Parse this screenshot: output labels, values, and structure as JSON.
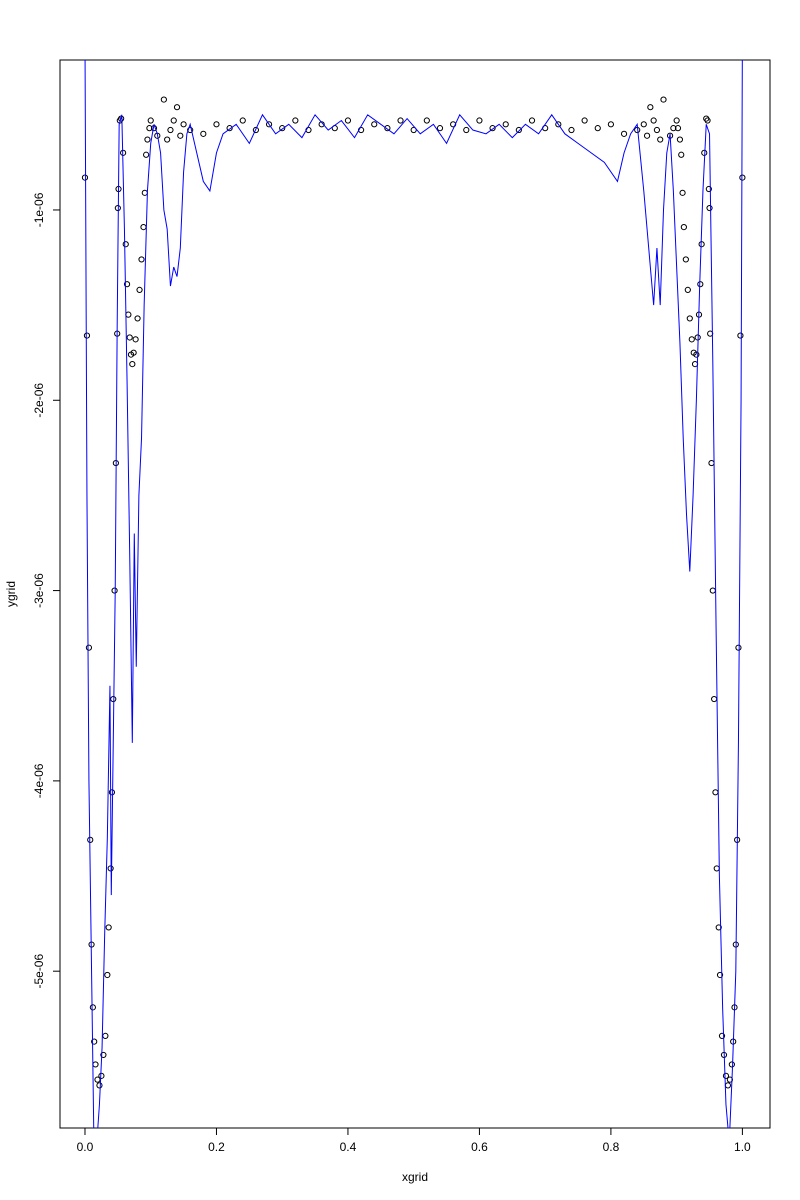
{
  "chart_data": {
    "type": "scatter",
    "x_label": "xgrid",
    "y_label": "ygrid",
    "xlim": [
      -0.038,
      1.042
    ],
    "ylim": [
      -5.824e-06,
      -2.12e-07
    ],
    "xticks": [
      {
        "value": 0,
        "label": "0.0"
      },
      0.2,
      0.4,
      0.6,
      0.8,
      {
        "value": 1,
        "label": "1.0"
      }
    ],
    "yticks": [
      {
        "value": -1e-06,
        "label": "-1e-06"
      },
      {
        "value": -2e-06,
        "label": "-2e-06"
      },
      {
        "value": -3e-06,
        "label": "-3e-06"
      },
      {
        "value": -4e-06,
        "label": "-4e-06"
      },
      {
        "value": -5e-06,
        "label": "-5e-06"
      }
    ],
    "series": [
      {
        "style": "points",
        "color": "#000000",
        "x": [
          0,
          0.003,
          0.006,
          0.008,
          0.01,
          0.012,
          0.014,
          0.016,
          0.019,
          0.022,
          0.025,
          0.028,
          0.031,
          0.034,
          0.036,
          0.039,
          0.041,
          0.043,
          0.045,
          0.047,
          0.049,
          0.05,
          0.051,
          0.053,
          0.055,
          0.058,
          0.062,
          0.064,
          0.066,
          0.068,
          0.07,
          0.072,
          0.074,
          0.077,
          0.08,
          0.083,
          0.086,
          0.089,
          0.091,
          0.093,
          0.095,
          0.098,
          0.1,
          0.105,
          0.11,
          0.12,
          0.125,
          0.13,
          0.135,
          0.14,
          0.145,
          0.15,
          0.16,
          0.18,
          0.2,
          0.22,
          0.24,
          0.26,
          0.28,
          0.3,
          0.32,
          0.34,
          0.36,
          0.38,
          0.4,
          0.42,
          0.44,
          0.46,
          0.48,
          0.5,
          0.52,
          0.54,
          0.56,
          0.58,
          0.6,
          0.62,
          0.64,
          0.66,
          0.68,
          0.7,
          0.72,
          0.74,
          0.76,
          0.78,
          0.8,
          0.82,
          0.84,
          0.85,
          0.855,
          0.86,
          0.865,
          0.87,
          0.875,
          0.88,
          0.89,
          0.895,
          0.9,
          0.902,
          0.905,
          0.907,
          0.909,
          0.911,
          0.914,
          0.917,
          0.92,
          0.923,
          0.926,
          0.928,
          0.93,
          0.932,
          0.934,
          0.936,
          0.938,
          0.942,
          0.945,
          0.947,
          0.949,
          0.95,
          0.951,
          0.953,
          0.955,
          0.957,
          0.959,
          0.961,
          0.964,
          0.966,
          0.969,
          0.972,
          0.975,
          0.978,
          0.981,
          0.984,
          0.986,
          0.988,
          0.99,
          0.992,
          0.994,
          0.997,
          1.0
        ],
        "values": [
          -8.3e-07,
          -1.66e-06,
          -3.3e-06,
          -4.31e-06,
          -4.86e-06,
          -5.19e-06,
          -5.37e-06,
          -5.49e-06,
          -5.57e-06,
          -5.6e-06,
          -5.55e-06,
          -5.44e-06,
          -5.34e-06,
          -5.02e-06,
          -4.77e-06,
          -4.46e-06,
          -4.06e-06,
          -3.57e-06,
          -3e-06,
          -2.33e-06,
          -1.65e-06,
          -9.9e-07,
          -8.9e-07,
          -5.3e-07,
          -5.2e-07,
          -7e-07,
          -1.18e-06,
          -1.39e-06,
          -1.55e-06,
          -1.67e-06,
          -1.76e-06,
          -1.81e-06,
          -1.75e-06,
          -1.68e-06,
          -1.57e-06,
          -1.42e-06,
          -1.26e-06,
          -1.09e-06,
          -9.1e-07,
          -7.1e-07,
          -6.3e-07,
          -5.7e-07,
          -5.3e-07,
          -5.7e-07,
          -6.1e-07,
          -4.2e-07,
          -6.3e-07,
          -5.8e-07,
          -5.3e-07,
          -4.6e-07,
          -6.1e-07,
          -5.5e-07,
          -5.8e-07,
          -6e-07,
          -5.5e-07,
          -5.7e-07,
          -5.3e-07,
          -5.8e-07,
          -5.5e-07,
          -5.7e-07,
          -5.3e-07,
          -5.8e-07,
          -5.5e-07,
          -5.7e-07,
          -5.3e-07,
          -5.8e-07,
          -5.5e-07,
          -5.7e-07,
          -5.3e-07,
          -5.8e-07,
          -5.3e-07,
          -5.7e-07,
          -5.5e-07,
          -5.8e-07,
          -5.3e-07,
          -5.7e-07,
          -5.5e-07,
          -5.8e-07,
          -5.3e-07,
          -5.7e-07,
          -5.5e-07,
          -5.8e-07,
          -5.3e-07,
          -5.7e-07,
          -5.5e-07,
          -6e-07,
          -5.8e-07,
          -5.5e-07,
          -6.1e-07,
          -4.6e-07,
          -5.3e-07,
          -5.8e-07,
          -6.3e-07,
          -4.2e-07,
          -6.1e-07,
          -5.7e-07,
          -5.3e-07,
          -5.7e-07,
          -6.3e-07,
          -7.1e-07,
          -9.1e-07,
          -1.09e-06,
          -1.26e-06,
          -1.42e-06,
          -1.57e-06,
          -1.68e-06,
          -1.75e-06,
          -1.81e-06,
          -1.76e-06,
          -1.67e-06,
          -1.55e-06,
          -1.39e-06,
          -1.18e-06,
          -7e-07,
          -5.2e-07,
          -5.3e-07,
          -8.9e-07,
          -9.9e-07,
          -1.65e-06,
          -2.33e-06,
          -3e-06,
          -3.57e-06,
          -4.06e-06,
          -4.46e-06,
          -4.77e-06,
          -5.02e-06,
          -5.34e-06,
          -5.44e-06,
          -5.55e-06,
          -5.6e-06,
          -5.57e-06,
          -5.49e-06,
          -5.37e-06,
          -5.19e-06,
          -4.86e-06,
          -4.31e-06,
          -3.3e-06,
          -1.66e-06,
          -8.3e-07
        ]
      },
      {
        "style": "line",
        "color": "#0000ff",
        "x": [
          0,
          0.003,
          0.006,
          0.01,
          0.014,
          0.018,
          0.022,
          0.026,
          0.03,
          0.034,
          0.038,
          0.04,
          0.043,
          0.046,
          0.049,
          0.052,
          0.056,
          0.06,
          0.064,
          0.068,
          0.072,
          0.075,
          0.078,
          0.082,
          0.086,
          0.09,
          0.095,
          0.1,
          0.105,
          0.11,
          0.115,
          0.12,
          0.125,
          0.13,
          0.135,
          0.14,
          0.145,
          0.15,
          0.155,
          0.16,
          0.17,
          0.18,
          0.19,
          0.2,
          0.21,
          0.23,
          0.25,
          0.27,
          0.29,
          0.31,
          0.33,
          0.35,
          0.37,
          0.39,
          0.41,
          0.43,
          0.45,
          0.47,
          0.49,
          0.51,
          0.53,
          0.55,
          0.57,
          0.59,
          0.61,
          0.63,
          0.65,
          0.67,
          0.69,
          0.71,
          0.73,
          0.75,
          0.77,
          0.79,
          0.81,
          0.82,
          0.83,
          0.84,
          0.85,
          0.86,
          0.865,
          0.87,
          0.875,
          0.88,
          0.885,
          0.89,
          0.895,
          0.9,
          0.905,
          0.91,
          0.915,
          0.92,
          0.925,
          0.93,
          0.935,
          0.94,
          0.945,
          0.95,
          0.955,
          0.96,
          0.965,
          0.97,
          0.975,
          0.98,
          0.985,
          0.99,
          0.994,
          0.998,
          1.0
        ],
        "values": [
          -1e-07,
          -2.5e-06,
          -4e-06,
          -5e-06,
          -6e-06,
          -5.9e-06,
          -5.7e-06,
          -5.4e-06,
          -4.8e-06,
          -4.3e-06,
          -3.5e-06,
          -4.6e-06,
          -3.8e-06,
          -3e-06,
          -1.6e-06,
          -5.5e-07,
          -5e-07,
          -1.1e-06,
          -1.9e-06,
          -2.8e-06,
          -3.8e-06,
          -2.7e-06,
          -3.4e-06,
          -2.5e-06,
          -2.2e-06,
          -1.5e-06,
          -9e-07,
          -6.5e-07,
          -5.5e-07,
          -6e-07,
          -7e-07,
          -1e-06,
          -1.1e-06,
          -1.4e-06,
          -1.3e-06,
          -1.35e-06,
          -1.2e-06,
          -8e-07,
          -6e-07,
          -5.5e-07,
          -7e-07,
          -8.5e-07,
          -9e-07,
          -7e-07,
          -6e-07,
          -5.5e-07,
          -6.5e-07,
          -5e-07,
          -6e-07,
          -5.5e-07,
          -6.2e-07,
          -5e-07,
          -5.8e-07,
          -5.3e-07,
          -6.2e-07,
          -5e-07,
          -5.5e-07,
          -6e-07,
          -5.2e-07,
          -6e-07,
          -5.5e-07,
          -6.5e-07,
          -5e-07,
          -5.8e-07,
          -6e-07,
          -5.5e-07,
          -6.2e-07,
          -5.5e-07,
          -6e-07,
          -5e-07,
          -6e-07,
          -6.5e-07,
          -7e-07,
          -7.5e-07,
          -8.5e-07,
          -7e-07,
          -6e-07,
          -5.5e-07,
          -9e-07,
          -1.3e-06,
          -1.5e-06,
          -1.2e-06,
          -1.5e-06,
          -1e-06,
          -7e-07,
          -6e-07,
          -9e-07,
          -1.3e-06,
          -1.7e-06,
          -2.2e-06,
          -2.6e-06,
          -2.9e-06,
          -2.5e-06,
          -2e-06,
          -1.4e-06,
          -9e-07,
          -5.5e-07,
          -6e-07,
          -1.8e-06,
          -3.2e-06,
          -4.5e-06,
          -5.2e-06,
          -5.7e-06,
          -5.9e-06,
          -5.5e-06,
          -5e-06,
          -3.8e-06,
          -2e-06,
          -1e-07
        ]
      }
    ]
  }
}
